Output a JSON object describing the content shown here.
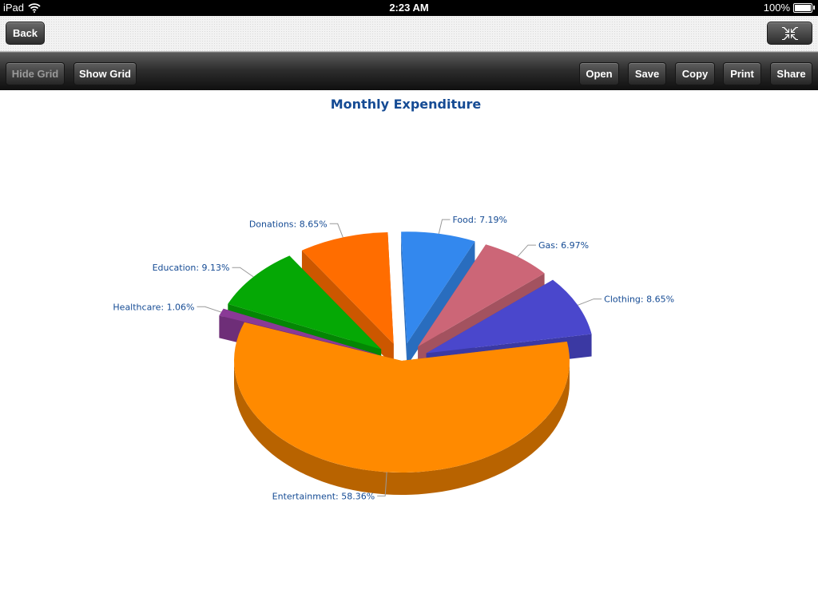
{
  "status_bar": {
    "device": "iPad",
    "time": "2:23 AM",
    "battery": "100%",
    "icons": [
      "wifi-icon",
      "battery-icon"
    ]
  },
  "nav_bar": {
    "back_label": "Back",
    "fullscreen_icon": "exit-fullscreen-icon"
  },
  "toolbar": {
    "hide_grid": "Hide Grid",
    "show_grid": "Show Grid",
    "open": "Open",
    "save": "Save",
    "copy": "Copy",
    "print": "Print",
    "share": "Share"
  },
  "chart_data": {
    "type": "pie",
    "style": "3d-exploded",
    "title": "Monthly Expenditure",
    "slices": [
      {
        "name": "Food",
        "value": 7.19,
        "label": "Food: 7.19%",
        "color": "#3388ee"
      },
      {
        "name": "Gas",
        "value": 6.97,
        "label": "Gas: 6.97%",
        "color": "#cc6677"
      },
      {
        "name": "Clothing",
        "value": 8.65,
        "label": "Clothing: 8.65%",
        "color": "#4a47cc"
      },
      {
        "name": "Entertainment",
        "value": 58.36,
        "label": "Entertainment: 58.36%",
        "color": "#ff8a00"
      },
      {
        "name": "Healthcare",
        "value": 1.06,
        "label": "Healthcare: 1.06%",
        "color": "#8a3a96"
      },
      {
        "name": "Education",
        "value": 9.13,
        "label": "Education: 9.13%",
        "color": "#05a805"
      },
      {
        "name": "Donations",
        "value": 8.65,
        "label": "Donations: 8.65%",
        "color": "#ff6d00"
      }
    ]
  }
}
